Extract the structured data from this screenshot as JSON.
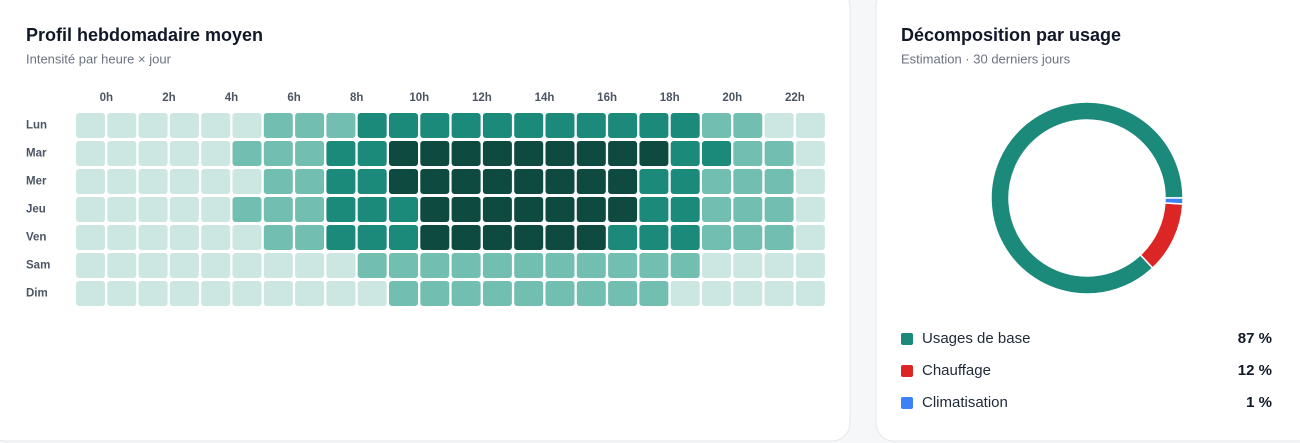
{
  "chart_data": [
    {
      "type": "heatmap",
      "title": "Profil hebdomadaire moyen",
      "subtitle": "Intensité par heure × jour",
      "categories": [
        "0h",
        null,
        "2h",
        null,
        "4h",
        null,
        "6h",
        null,
        "8h",
        null,
        "10h",
        null,
        "12h",
        null,
        "14h",
        null,
        "16h",
        null,
        "18h",
        null,
        "20h",
        null,
        "22h",
        null
      ],
      "rows": [
        "Lun",
        "Mar",
        "Mer",
        "Jeu",
        "Ven",
        "Sam",
        "Dim"
      ],
      "colors": [
        "#cce6e1",
        "#72bfb1",
        "#1b8a7a",
        "#0f4a41"
      ],
      "values": [
        [
          1,
          1,
          1,
          1,
          1,
          1,
          2,
          2,
          2,
          3,
          3,
          3,
          3,
          3,
          3,
          3,
          3,
          3,
          3,
          3,
          2,
          2,
          1,
          1
        ],
        [
          1,
          1,
          1,
          1,
          1,
          2,
          2,
          2,
          3,
          3,
          4,
          4,
          4,
          4,
          4,
          4,
          4,
          4,
          4,
          3,
          3,
          2,
          2,
          1
        ],
        [
          1,
          1,
          1,
          1,
          1,
          1,
          2,
          2,
          3,
          3,
          4,
          4,
          4,
          4,
          4,
          4,
          4,
          4,
          3,
          3,
          2,
          2,
          2,
          1
        ],
        [
          1,
          1,
          1,
          1,
          1,
          2,
          2,
          2,
          3,
          3,
          3,
          4,
          4,
          4,
          4,
          4,
          4,
          4,
          3,
          3,
          2,
          2,
          2,
          1
        ],
        [
          1,
          1,
          1,
          1,
          1,
          1,
          2,
          2,
          3,
          3,
          3,
          4,
          4,
          4,
          4,
          4,
          4,
          3,
          3,
          3,
          2,
          2,
          2,
          1
        ],
        [
          1,
          1,
          1,
          1,
          1,
          1,
          1,
          1,
          1,
          2,
          2,
          2,
          2,
          2,
          2,
          2,
          2,
          2,
          2,
          2,
          1,
          1,
          1,
          1
        ],
        [
          1,
          1,
          1,
          1,
          1,
          1,
          1,
          1,
          1,
          1,
          2,
          2,
          2,
          2,
          2,
          2,
          2,
          2,
          2,
          1,
          1,
          1,
          1,
          1
        ]
      ]
    },
    {
      "type": "pie",
      "title": "Décomposition par usage",
      "subtitle": "Estimation · 30 derniers jours",
      "categories": [
        "Usages de base",
        "Chauffage",
        "Climatisation"
      ],
      "values": [
        87,
        12,
        1
      ],
      "value_labels": [
        "87 %",
        "12 %",
        "1 %"
      ],
      "colors": [
        "#1b8a7a",
        "#dc2626",
        "#3b82f6"
      ]
    }
  ]
}
